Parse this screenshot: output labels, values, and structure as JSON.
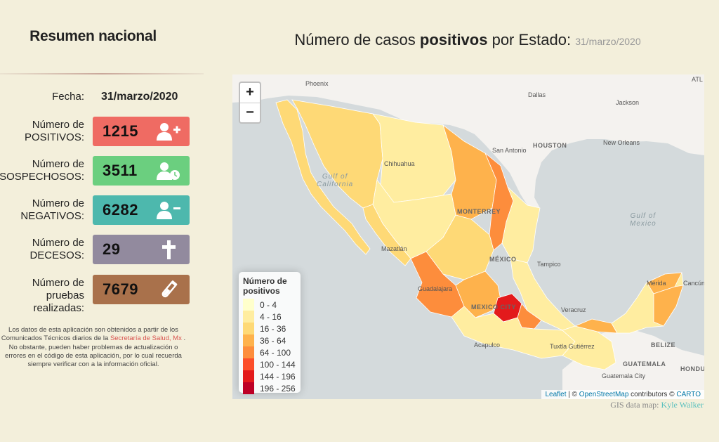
{
  "summary": {
    "title": "Resumen nacional",
    "fecha_label": "Fecha:",
    "fecha_value": "31/marzo/2020",
    "stats": [
      {
        "label_line1": "Número de",
        "label_line2": "POSITIVOS:",
        "value": "1215",
        "color": "#ef6b63",
        "icon": "user-plus-icon"
      },
      {
        "label_line1": "Número de",
        "label_line2": "SOSPECHOSOS:",
        "value": "3511",
        "color": "#6bcf7f",
        "icon": "user-clock-icon"
      },
      {
        "label_line1": "Número de",
        "label_line2": "NEGATIVOS:",
        "value": "6282",
        "color": "#4db8ad",
        "icon": "user-minus-icon"
      },
      {
        "label_line1": "Número de",
        "label_line2": "DECESOS:",
        "value": "29",
        "color": "#928a9e",
        "icon": "cross-icon"
      },
      {
        "label_line1": "Número de",
        "label_line2": "pruebas",
        "label_line3": "realizadas:",
        "value": "7679",
        "color": "#a9714b",
        "icon": "test-tube-icon"
      }
    ],
    "disclaimer_pre": "Los datos de esta aplicación son obtenidos a partir de los Comunicados Técnicos diarios de la ",
    "disclaimer_link": "Secretaría de Salud, Mx",
    "disclaimer_post": " . No obstante, pueden haber problemas de actualización o errores en el código de esta aplicación, por lo cual recuerda siempre verificar con a la información oficial."
  },
  "map": {
    "title_pre": "Número de casos ",
    "title_bold": "positivos",
    "title_post": " por Estado: ",
    "title_date": "31/marzo/2020",
    "zoom_in": "+",
    "zoom_out": "−",
    "legend": {
      "title_line1": "Número de",
      "title_line2": "positivos",
      "items": [
        {
          "label": "0 - 4",
          "color": "#ffffcc"
        },
        {
          "label": "4 - 16",
          "color": "#ffeda0"
        },
        {
          "label": "16 - 36",
          "color": "#fed976"
        },
        {
          "label": "36 - 64",
          "color": "#feb24c"
        },
        {
          "label": "64 - 100",
          "color": "#fd8d3c"
        },
        {
          "label": "100 - 144",
          "color": "#fc4e2a"
        },
        {
          "label": "144 - 196",
          "color": "#e31a1c"
        },
        {
          "label": "196 - 256",
          "color": "#bd0026"
        }
      ]
    },
    "place_labels": {
      "phoenix": "Phoenix",
      "dallas": "Dallas",
      "jackson": "Jackson",
      "atl": "ATL",
      "san_antonio": "San Antonio",
      "houston": "HOUSTON",
      "new_orleans": "New Orleans",
      "chihuahua": "Chihuahua",
      "monterrey": "MONTERREY",
      "mazatlan": "Mazatlán",
      "tampico": "Tampico",
      "mexico": "MÉXICO",
      "guadalajara": "Guadalajara",
      "mexico_city": "MEXICO CITY",
      "veracruz": "Veracruz",
      "acapulco": "Acapulco",
      "tuxtla": "Tuxtla Gutiérrez",
      "merida": "Mérida",
      "cancun": "Cancún",
      "belize": "BELIZE",
      "guatemala": "GUATEMALA",
      "honduras": "HONDU",
      "guatemala_city": "Guatemala City",
      "gulf_california_1": "Gulf of",
      "gulf_california_2": "California",
      "gulf_mexico_1": "Gulf of",
      "gulf_mexico_2": "Mexico"
    },
    "attribution_leaflet": "Leaflet",
    "attribution_sep": " | © ",
    "attribution_osm": "OpenStreetMap",
    "attribution_mid": " contributors © ",
    "attribution_carto": "CARTO"
  },
  "gis": {
    "label": "GIS data map: ",
    "author": "Kyle Walker"
  }
}
